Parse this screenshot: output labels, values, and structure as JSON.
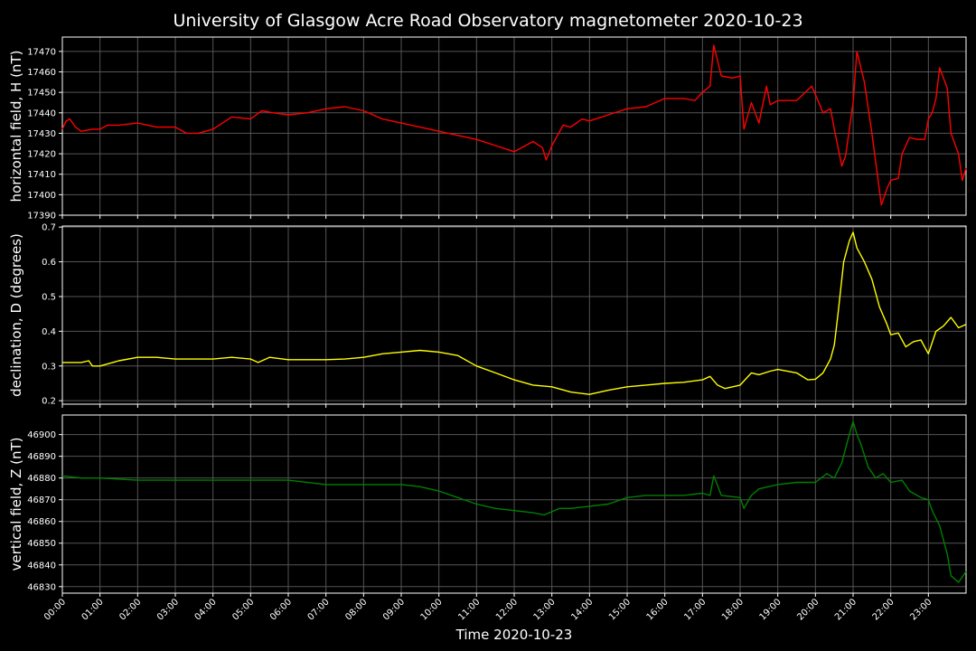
{
  "figure": {
    "title": "University of Glasgow Acre Road Observatory magnetometer 2020-10-23",
    "xlabel": "Time 2020-10-23",
    "background": "#000000",
    "grid_color": "#555555",
    "text_color": "#ffffff"
  },
  "chart_data": [
    {
      "type": "line",
      "ylabel": "horizontal field, H (nT)",
      "ylim": [
        17390,
        17477
      ],
      "yticks": [
        "17390",
        "17400",
        "17410",
        "17420",
        "17430",
        "17440",
        "17450",
        "17460",
        "17470"
      ],
      "xticks": [],
      "xlim": [
        0,
        24
      ],
      "grid": true,
      "series": [
        {
          "color": "#ff0000",
          "x": [
            0,
            0.1,
            0.2,
            0.35,
            0.5,
            0.8,
            1.0,
            1.2,
            1.5,
            2.0,
            2.5,
            3.0,
            3.3,
            3.6,
            4.0,
            4.5,
            5.0,
            5.3,
            5.6,
            6.0,
            6.5,
            7.0,
            7.5,
            8.0,
            8.5,
            9.0,
            9.5,
            10.0,
            10.5,
            11.0,
            11.5,
            12.0,
            12.3,
            12.5,
            12.75,
            12.85,
            13.0,
            13.3,
            13.5,
            13.8,
            14.0,
            14.5,
            15.0,
            15.5,
            16.0,
            16.5,
            16.8,
            17.0,
            17.2,
            17.3,
            17.5,
            17.8,
            18.0,
            18.1,
            18.3,
            18.5,
            18.7,
            18.8,
            19.0,
            19.5,
            19.9,
            20.0,
            20.2,
            20.4,
            20.5,
            20.7,
            20.8,
            21.0,
            21.1,
            21.3,
            21.5,
            21.75,
            21.9,
            22.0,
            22.2,
            22.3,
            22.5,
            22.7,
            22.9,
            23.0,
            23.1,
            23.2,
            23.3,
            23.5,
            23.6,
            23.8,
            23.9,
            24.0
          ],
          "y": [
            17432,
            17436,
            17437,
            17433,
            17431,
            17432,
            17432,
            17434,
            17434,
            17435,
            17433,
            17433,
            17430,
            17430,
            17432,
            17438,
            17437,
            17441,
            17440,
            17439,
            17440,
            17442,
            17443,
            17441,
            17437,
            17435,
            17433,
            17431,
            17429,
            17427,
            17424,
            17421,
            17424,
            17426,
            17423,
            17417,
            17424,
            17434,
            17433,
            17437,
            17436,
            17439,
            17442,
            17443,
            17447,
            17447,
            17446,
            17450,
            17453,
            17473,
            17458,
            17457,
            17458,
            17432,
            17445,
            17435,
            17453,
            17444,
            17446,
            17446,
            17453,
            17449,
            17440,
            17442,
            17432,
            17414,
            17419,
            17445,
            17470,
            17455,
            17430,
            17395,
            17403,
            17407,
            17408,
            17420,
            17428,
            17427,
            17427,
            17437,
            17440,
            17447,
            17462,
            17452,
            17430,
            17420,
            17407,
            17413
          ]
        }
      ]
    },
    {
      "type": "line",
      "ylabel": "declination, D (degrees)",
      "ylim": [
        0.19,
        0.703
      ],
      "yticks": [
        "0.2",
        "0.3",
        "0.4",
        "0.5",
        "0.6",
        "0.7"
      ],
      "xticks": [],
      "xlim": [
        0,
        24
      ],
      "grid": true,
      "series": [
        {
          "color": "#ffff00",
          "x": [
            0,
            0.5,
            0.7,
            0.8,
            1.0,
            1.5,
            2.0,
            2.5,
            3.0,
            3.5,
            4.0,
            4.5,
            5.0,
            5.2,
            5.5,
            6.0,
            6.5,
            7.0,
            7.5,
            8.0,
            8.5,
            9.0,
            9.5,
            10.0,
            10.5,
            11.0,
            11.5,
            12.0,
            12.5,
            13.0,
            13.5,
            14.0,
            14.5,
            15.0,
            15.5,
            16.0,
            16.5,
            17.0,
            17.2,
            17.4,
            17.6,
            17.8,
            18.0,
            18.3,
            18.5,
            18.8,
            19.0,
            19.5,
            19.8,
            20.0,
            20.2,
            20.4,
            20.5,
            20.6,
            20.75,
            20.9,
            21.0,
            21.1,
            21.3,
            21.5,
            21.7,
            21.9,
            22.0,
            22.2,
            22.4,
            22.6,
            22.8,
            23.0,
            23.2,
            23.4,
            23.6,
            23.8,
            24.0
          ],
          "y": [
            0.31,
            0.31,
            0.315,
            0.3,
            0.3,
            0.315,
            0.325,
            0.325,
            0.32,
            0.32,
            0.32,
            0.325,
            0.32,
            0.31,
            0.325,
            0.318,
            0.318,
            0.318,
            0.32,
            0.325,
            0.335,
            0.34,
            0.345,
            0.34,
            0.33,
            0.3,
            0.28,
            0.26,
            0.245,
            0.24,
            0.225,
            0.218,
            0.23,
            0.24,
            0.245,
            0.25,
            0.253,
            0.26,
            0.27,
            0.245,
            0.235,
            0.24,
            0.245,
            0.28,
            0.275,
            0.285,
            0.29,
            0.28,
            0.26,
            0.262,
            0.28,
            0.32,
            0.36,
            0.45,
            0.6,
            0.66,
            0.685,
            0.64,
            0.6,
            0.55,
            0.47,
            0.42,
            0.39,
            0.395,
            0.355,
            0.37,
            0.375,
            0.335,
            0.4,
            0.415,
            0.44,
            0.41,
            0.42
          ]
        }
      ]
    },
    {
      "type": "line",
      "ylabel": "vertical field, Z (nT)",
      "ylim": [
        46827,
        46909
      ],
      "yticks": [
        "46830",
        "46840",
        "46850",
        "46860",
        "46870",
        "46880",
        "46890",
        "46900"
      ],
      "xticks": [
        "00:00",
        "01:00",
        "02:00",
        "03:00",
        "04:00",
        "05:00",
        "06:00",
        "07:00",
        "08:00",
        "09:00",
        "10:00",
        "11:00",
        "12:00",
        "13:00",
        "14:00",
        "15:00",
        "16:00",
        "17:00",
        "18:00",
        "19:00",
        "20:00",
        "21:00",
        "22:00",
        "23:00"
      ],
      "xlim": [
        0,
        24
      ],
      "grid": true,
      "series": [
        {
          "color": "#008000",
          "x": [
            0,
            0.5,
            1.0,
            2.0,
            3.0,
            4.0,
            5.0,
            6.0,
            7.0,
            8.0,
            9.0,
            9.5,
            10.0,
            10.5,
            11.0,
            11.5,
            12.0,
            12.5,
            12.8,
            13.2,
            13.5,
            14.0,
            14.5,
            15.0,
            15.5,
            16.0,
            16.5,
            17.0,
            17.2,
            17.3,
            17.5,
            18.0,
            18.1,
            18.3,
            18.5,
            19.0,
            19.5,
            20.0,
            20.3,
            20.5,
            20.7,
            20.9,
            21.0,
            21.1,
            21.2,
            21.4,
            21.6,
            21.8,
            22.0,
            22.3,
            22.5,
            22.8,
            23.0,
            23.1,
            23.3,
            23.5,
            23.6,
            23.8,
            24.0
          ],
          "y": [
            46881,
            46880,
            46880,
            46879,
            46879,
            46879,
            46879,
            46879,
            46877,
            46877,
            46877,
            46876,
            46874,
            46871,
            46868,
            46866,
            46865,
            46864,
            46863,
            46866,
            46866,
            46867,
            46868,
            46871,
            46872,
            46872,
            46872,
            46873,
            46872,
            46881,
            46872,
            46871,
            46866,
            46872,
            46875,
            46877,
            46878,
            46878,
            46882,
            46880,
            46887,
            46900,
            46906,
            46900,
            46896,
            46885,
            46880,
            46882,
            46878,
            46879,
            46874,
            46871,
            46870,
            46865,
            46858,
            46845,
            46835,
            46832,
            46837
          ]
        }
      ]
    }
  ]
}
